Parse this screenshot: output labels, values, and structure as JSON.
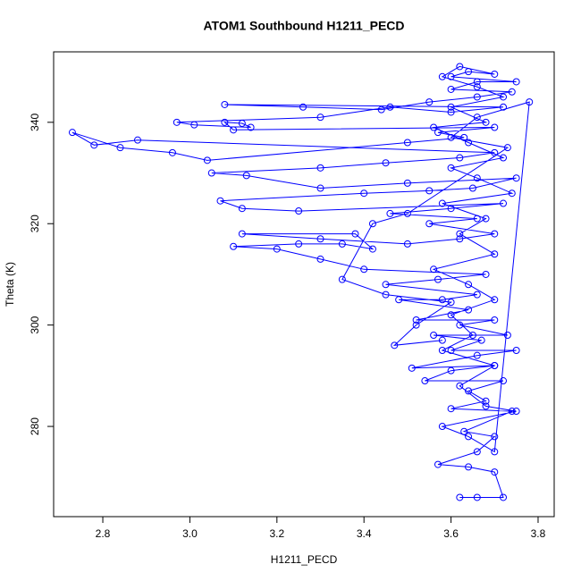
{
  "chart_data": {
    "type": "line",
    "title": "ATOM1 Southbound H1211_PECD",
    "x_label": "H1211_PECD",
    "y_label": "Theta (K)",
    "color": "#0000ff",
    "markers": true,
    "xlim": [
      2.687,
      3.837
    ],
    "xticks": [
      2.8,
      {
        "value": 3,
        "label": "3.0"
      },
      3.2,
      3.4,
      3.6,
      3.8
    ],
    "ylim": [
      262.2,
      353.9
    ],
    "yticks": [
      280,
      300,
      320,
      340
    ],
    "x": [
      3.62,
      3.66,
      3.72,
      3.7,
      3.64,
      3.57,
      3.66,
      3.7,
      3.63,
      3.74,
      3.6,
      3.68,
      3.64,
      3.72,
      3.54,
      3.6,
      3.7,
      3.51,
      3.66,
      3.75,
      3.6,
      3.67,
      3.56,
      3.73,
      3.62,
      3.7,
      3.52,
      3.64,
      3.48,
      3.58,
      3.66,
      3.45,
      3.57,
      3.68,
      3.4,
      3.3,
      3.2,
      3.1,
      3.25,
      3.35,
      3.42,
      3.38,
      3.12,
      3.3,
      3.5,
      3.62,
      3.7,
      3.55,
      3.66,
      3.46,
      3.6,
      3.72,
      3.25,
      3.12,
      3.07,
      3.4,
      3.55,
      3.65,
      3.75,
      3.5,
      3.3,
      3.13,
      3.05,
      3.3,
      3.45,
      3.62,
      3.7,
      2.88,
      2.78,
      2.73,
      2.84,
      2.96,
      3.04,
      3.5,
      3.63,
      3.57,
      3.7,
      3.1,
      3.08,
      3.12,
      3.14,
      3.01,
      2.97,
      3.3,
      3.46,
      3.6,
      3.72,
      3.08,
      3.26,
      3.44,
      3.55,
      3.66,
      3.74,
      3.6,
      3.66,
      3.75,
      3.6,
      3.64,
      3.7,
      3.62,
      3.58,
      3.66,
      3.72,
      3.6,
      3.68,
      3.56,
      3.64,
      3.72,
      3.6,
      3.66,
      3.74,
      3.58,
      3.68,
      3.62,
      3.7,
      3.56,
      3.64,
      3.7,
      3.6,
      3.65,
      3.58,
      3.7,
      3.62,
      3.68,
      3.75,
      3.58,
      3.64,
      3.7,
      3.78,
      3.66,
      3.6,
      3.73,
      3.5,
      3.42,
      3.35,
      3.45,
      3.6,
      3.52,
      3.47,
      3.58
    ],
    "values": [
      266,
      266,
      266,
      271,
      272,
      272.5,
      275,
      278,
      279,
      283,
      283.5,
      285,
      287,
      289,
      289,
      291,
      292,
      291.5,
      294,
      295,
      295,
      297,
      298,
      298,
      300,
      301,
      301,
      303,
      305,
      305,
      306,
      308,
      309,
      310,
      311,
      313,
      315,
      315.5,
      316,
      316,
      315,
      318,
      318,
      317,
      316,
      317,
      318,
      320,
      321,
      322,
      323,
      324,
      322.5,
      323,
      324.5,
      326,
      326.5,
      327,
      329,
      328,
      327,
      329.5,
      330,
      331,
      332,
      333,
      334,
      336.5,
      335.5,
      338,
      335,
      334,
      332.5,
      336,
      337,
      338,
      339,
      338.5,
      340,
      339.8,
      339,
      339.5,
      340,
      341,
      343,
      342,
      343,
      343.5,
      343,
      342.5,
      344,
      345,
      346,
      346.5,
      348,
      348,
      349,
      350,
      349.5,
      351,
      349,
      347,
      345,
      343,
      340,
      339,
      336,
      333,
      331,
      329,
      326,
      324,
      321,
      318,
      314,
      311,
      308,
      305,
      302,
      298,
      295,
      292,
      288,
      284,
      283,
      280,
      278,
      275,
      344,
      341,
      337,
      335,
      322,
      320,
      309,
      306,
      304.5,
      300,
      296,
      297
    ]
  }
}
